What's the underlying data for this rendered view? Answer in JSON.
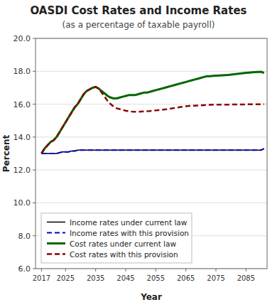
{
  "chart_data": {
    "type": "line",
    "title": "OASDI Cost Rates and Income Rates",
    "subtitle": "(as a percentage of taxable payroll)",
    "x_label": "Year",
    "y_label": "Percent",
    "x": [
      2017,
      2018,
      2019,
      2020,
      2021,
      2022,
      2023,
      2024,
      2025,
      2026,
      2027,
      2028,
      2029,
      2030,
      2031,
      2032,
      2033,
      2034,
      2035,
      2036,
      2037,
      2038,
      2039,
      2040,
      2041,
      2042,
      2043,
      2044,
      2045,
      2046,
      2047,
      2048,
      2049,
      2050,
      2051,
      2052,
      2053,
      2054,
      2055,
      2056,
      2057,
      2058,
      2059,
      2060,
      2061,
      2062,
      2063,
      2064,
      2065,
      2066,
      2067,
      2068,
      2069,
      2070,
      2071,
      2072,
      2073,
      2074,
      2075,
      2076,
      2077,
      2078,
      2079,
      2080,
      2081,
      2082,
      2083,
      2084,
      2085,
      2086,
      2087,
      2088,
      2089,
      2090,
      2091
    ],
    "series": [
      {
        "name": "Income rates under current law",
        "color": "#000000",
        "line_style": "solid",
        "values": [
          13.0,
          13.0,
          13.0,
          13.0,
          13.0,
          13.0,
          13.05,
          13.1,
          13.1,
          13.1,
          13.15,
          13.15,
          13.2,
          13.2,
          13.2,
          13.2,
          13.2,
          13.2,
          13.2,
          13.2,
          13.2,
          13.2,
          13.2,
          13.2,
          13.2,
          13.2,
          13.2,
          13.2,
          13.2,
          13.2,
          13.2,
          13.2,
          13.2,
          13.2,
          13.2,
          13.2,
          13.2,
          13.2,
          13.2,
          13.2,
          13.2,
          13.2,
          13.2,
          13.2,
          13.2,
          13.2,
          13.2,
          13.2,
          13.2,
          13.2,
          13.2,
          13.2,
          13.2,
          13.2,
          13.2,
          13.2,
          13.2,
          13.2,
          13.2,
          13.2,
          13.2,
          13.2,
          13.2,
          13.2,
          13.2,
          13.2,
          13.2,
          13.2,
          13.2,
          13.2,
          13.2,
          13.2,
          13.2,
          13.2,
          13.3
        ]
      },
      {
        "name": "Income rates with this provision",
        "color": "#0000cc",
        "line_style": "dashed",
        "values": [
          13.0,
          13.0,
          13.0,
          13.0,
          13.0,
          13.0,
          13.05,
          13.1,
          13.1,
          13.1,
          13.15,
          13.15,
          13.2,
          13.2,
          13.2,
          13.2,
          13.2,
          13.2,
          13.2,
          13.2,
          13.2,
          13.2,
          13.2,
          13.2,
          13.2,
          13.2,
          13.2,
          13.2,
          13.2,
          13.2,
          13.2,
          13.2,
          13.2,
          13.2,
          13.2,
          13.2,
          13.2,
          13.2,
          13.2,
          13.2,
          13.2,
          13.2,
          13.2,
          13.2,
          13.2,
          13.2,
          13.2,
          13.2,
          13.2,
          13.2,
          13.2,
          13.2,
          13.2,
          13.2,
          13.2,
          13.2,
          13.2,
          13.2,
          13.2,
          13.2,
          13.2,
          13.2,
          13.2,
          13.2,
          13.2,
          13.2,
          13.2,
          13.2,
          13.2,
          13.2,
          13.2,
          13.2,
          13.2,
          13.2,
          13.3
        ]
      },
      {
        "name": "Cost rates under current law",
        "color": "#006600",
        "line_style": "solid",
        "values": [
          13.0,
          13.3,
          13.5,
          13.7,
          13.8,
          14.0,
          14.3,
          14.6,
          14.9,
          15.2,
          15.5,
          15.8,
          16.0,
          16.3,
          16.6,
          16.8,
          16.9,
          17.0,
          17.05,
          16.95,
          16.8,
          16.65,
          16.5,
          16.4,
          16.35,
          16.35,
          16.4,
          16.45,
          16.5,
          16.55,
          16.55,
          16.55,
          16.6,
          16.65,
          16.7,
          16.7,
          16.75,
          16.8,
          16.85,
          16.9,
          16.95,
          17.0,
          17.05,
          17.1,
          17.15,
          17.2,
          17.25,
          17.3,
          17.35,
          17.4,
          17.45,
          17.5,
          17.55,
          17.6,
          17.65,
          17.7,
          17.7,
          17.72,
          17.73,
          17.74,
          17.75,
          17.76,
          17.77,
          17.8,
          17.82,
          17.84,
          17.86,
          17.88,
          17.9,
          17.92,
          17.94,
          17.95,
          17.96,
          17.97,
          17.9
        ]
      },
      {
        "name": "Cost rates with this provision",
        "color": "#8b0000",
        "line_style": "dashed",
        "values": [
          13.0,
          13.3,
          13.5,
          13.7,
          13.8,
          14.0,
          14.3,
          14.6,
          14.9,
          15.2,
          15.5,
          15.8,
          16.0,
          16.3,
          16.6,
          16.8,
          16.9,
          17.0,
          17.05,
          16.95,
          16.7,
          16.45,
          16.2,
          16.0,
          15.85,
          15.75,
          15.7,
          15.65,
          15.6,
          15.57,
          15.55,
          15.54,
          15.54,
          15.55,
          15.56,
          15.57,
          15.58,
          15.6,
          15.62,
          15.64,
          15.66,
          15.68,
          15.7,
          15.73,
          15.76,
          15.79,
          15.82,
          15.85,
          15.87,
          15.89,
          15.9,
          15.91,
          15.92,
          15.93,
          15.94,
          15.95,
          15.96,
          15.97,
          15.97,
          15.97,
          15.97,
          15.97,
          15.97,
          15.98,
          15.98,
          15.98,
          15.98,
          15.98,
          15.99,
          15.99,
          15.99,
          15.99,
          15.99,
          15.99,
          16.0
        ]
      }
    ],
    "xlim": [
      2015,
      2092
    ],
    "ylim": [
      6.0,
      20.0
    ],
    "xticks": [
      2017,
      2025,
      2035,
      2045,
      2055,
      2065,
      2075,
      2085
    ],
    "yticks": [
      {
        "value": 6.0,
        "label": "6.0"
      },
      {
        "value": 8.0,
        "label": "8.0"
      },
      {
        "value": 10.0,
        "label": "10.0"
      },
      {
        "value": 12.0,
        "label": "12.0"
      },
      {
        "value": 14.0,
        "label": "14.0"
      },
      {
        "value": 16.0,
        "label": "16.0"
      },
      {
        "value": 18.0,
        "label": "18.0"
      },
      {
        "value": 20.0,
        "label": "20.0"
      }
    ],
    "grid": true,
    "legend": "lower left"
  }
}
